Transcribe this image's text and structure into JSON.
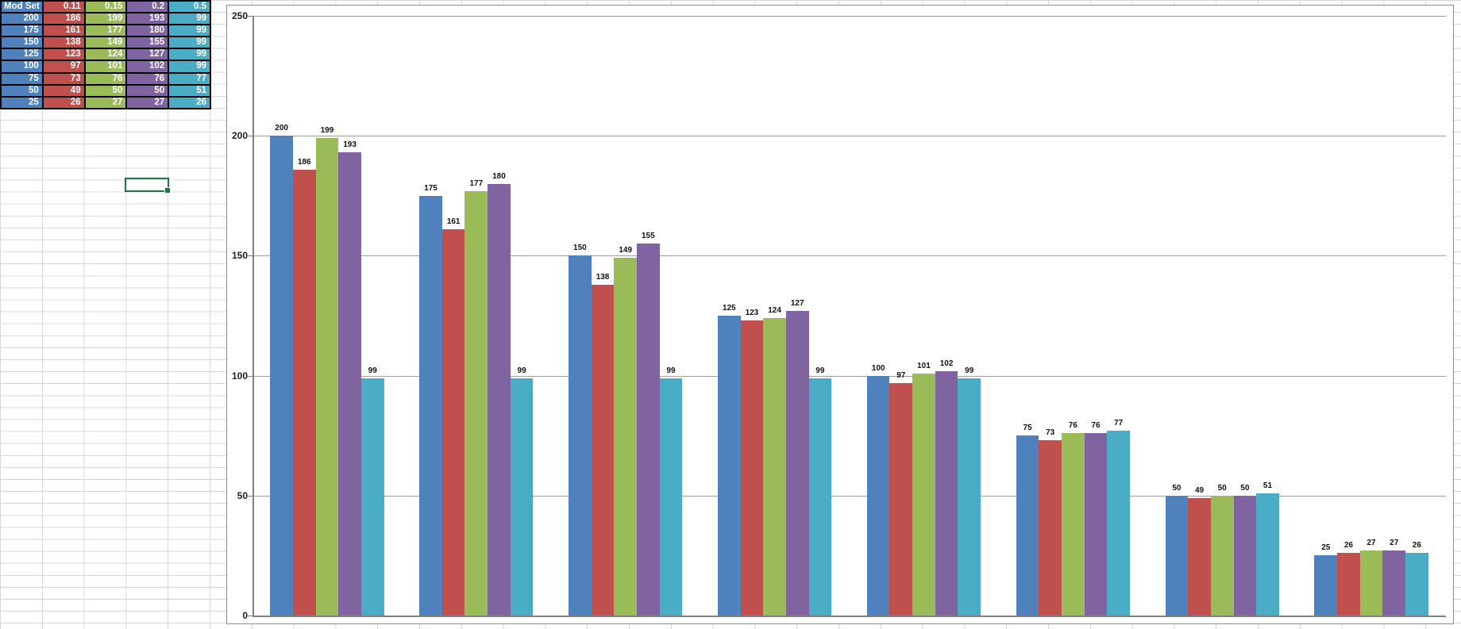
{
  "table": {
    "header": [
      "Mod Set",
      "0.11",
      "0.15",
      "0.2",
      "0.5"
    ],
    "column_colors": [
      "#4F81BD",
      "#C0504D",
      "#9BBB59",
      "#8064A2",
      "#4BACC6"
    ],
    "rows": [
      [
        "200",
        "186",
        "199",
        "193",
        "99"
      ],
      [
        "175",
        "161",
        "177",
        "180",
        "99"
      ],
      [
        "150",
        "138",
        "149",
        "155",
        "99"
      ],
      [
        "125",
        "123",
        "124",
        "127",
        "99"
      ],
      [
        "100",
        "97",
        "101",
        "102",
        "99"
      ],
      [
        "75",
        "73",
        "76",
        "76",
        "77"
      ],
      [
        "50",
        "49",
        "50",
        "50",
        "51"
      ],
      [
        "25",
        "26",
        "27",
        "27",
        "26"
      ]
    ]
  },
  "selection": {
    "border_color": "#217346"
  },
  "chart_data": {
    "type": "bar",
    "title": "",
    "categories": [
      "200",
      "175",
      "150",
      "125",
      "100",
      "75",
      "50",
      "25"
    ],
    "series": [
      {
        "name": "Mod Set",
        "color": "#4F81BD",
        "values": [
          200,
          175,
          150,
          125,
          100,
          75,
          50,
          25
        ]
      },
      {
        "name": "0.11",
        "color": "#C0504D",
        "values": [
          186,
          161,
          138,
          123,
          97,
          73,
          49,
          26
        ]
      },
      {
        "name": "0.15",
        "color": "#9BBB59",
        "values": [
          199,
          177,
          149,
          124,
          101,
          76,
          50,
          27
        ]
      },
      {
        "name": "0.2",
        "color": "#8064A2",
        "values": [
          193,
          180,
          155,
          127,
          102,
          76,
          50,
          27
        ]
      },
      {
        "name": "0.5",
        "color": "#4BACC6",
        "values": [
          99,
          99,
          99,
          99,
          99,
          77,
          51,
          26
        ]
      }
    ],
    "xlabel": "",
    "ylabel": "",
    "ylim": [
      0,
      250
    ],
    "yticks": [
      0,
      50,
      100,
      150,
      200,
      250
    ],
    "grid": true,
    "gridline_color": "#9d9d9d",
    "axis_color": "#808080",
    "legend": "none",
    "x_tick_labels": "none",
    "data_labels": true
  }
}
